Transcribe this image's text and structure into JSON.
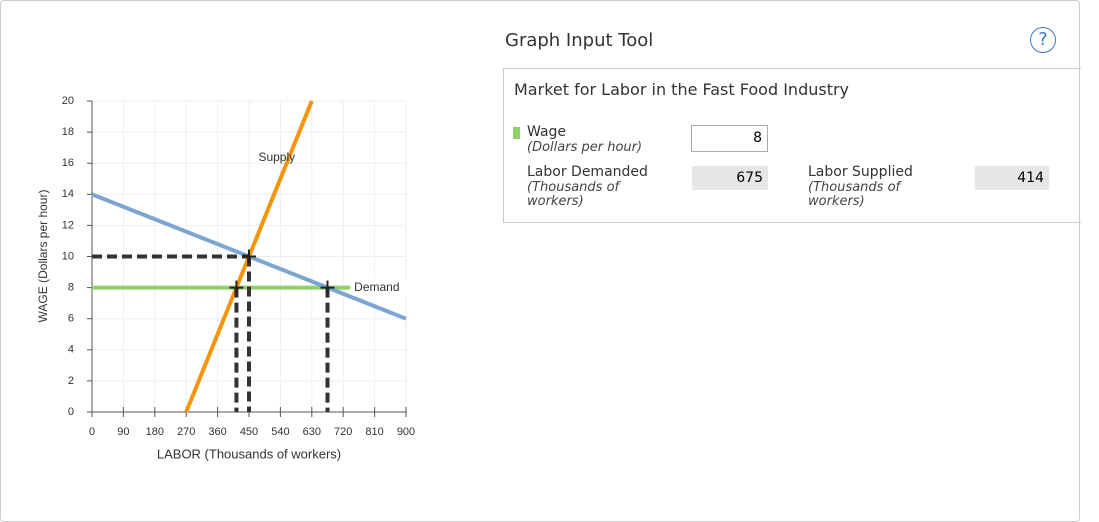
{
  "chart_data": {
    "type": "line",
    "xlabel": "LABOR (Thousands of workers)",
    "ylabel": "WAGE (Dollars per hour)",
    "xlim": [
      0,
      900
    ],
    "xticks": [
      0,
      90,
      180,
      270,
      360,
      450,
      540,
      630,
      720,
      810,
      900
    ],
    "ylim": [
      0,
      20
    ],
    "yticks": [
      0,
      2,
      4,
      6,
      8,
      10,
      12,
      14,
      16,
      18,
      20
    ],
    "grid": true,
    "series": [
      {
        "name": "Demand",
        "color": "#7ba6d4",
        "x": [
          0,
          900
        ],
        "values": [
          14,
          6
        ]
      },
      {
        "name": "Supply",
        "color": "#f5960a",
        "x": [
          270,
          630
        ],
        "values": [
          0,
          20
        ]
      }
    ],
    "wage_line": {
      "color": "#8fd16a",
      "x": [
        0,
        740
      ],
      "values": [
        8,
        8
      ]
    },
    "guides": [
      {
        "x": [
          0,
          450
        ],
        "values": [
          10,
          10
        ]
      },
      {
        "x": [
          450,
          450
        ],
        "values": [
          10,
          0
        ]
      },
      {
        "x": [
          414,
          414
        ],
        "values": [
          8,
          0
        ]
      },
      {
        "x": [
          675,
          675
        ],
        "values": [
          8,
          0
        ]
      }
    ],
    "points": {
      "x": [
        414,
        450,
        675
      ],
      "values": [
        8,
        10,
        8
      ]
    }
  },
  "tool": {
    "title": "Graph Input Tool",
    "help": "?",
    "panel_title": "Market for Labor in the Fast Food Industry",
    "wage_label": "Wage",
    "wage_unit": "(Dollars per hour)",
    "wage_value": 8,
    "demanded_label": "Labor Demanded",
    "demanded_unit": "(Thousands of workers)",
    "demanded_value": 675,
    "supplied_label": "Labor Supplied",
    "supplied_unit": "(Thousands of workers)",
    "supplied_value": 414
  }
}
